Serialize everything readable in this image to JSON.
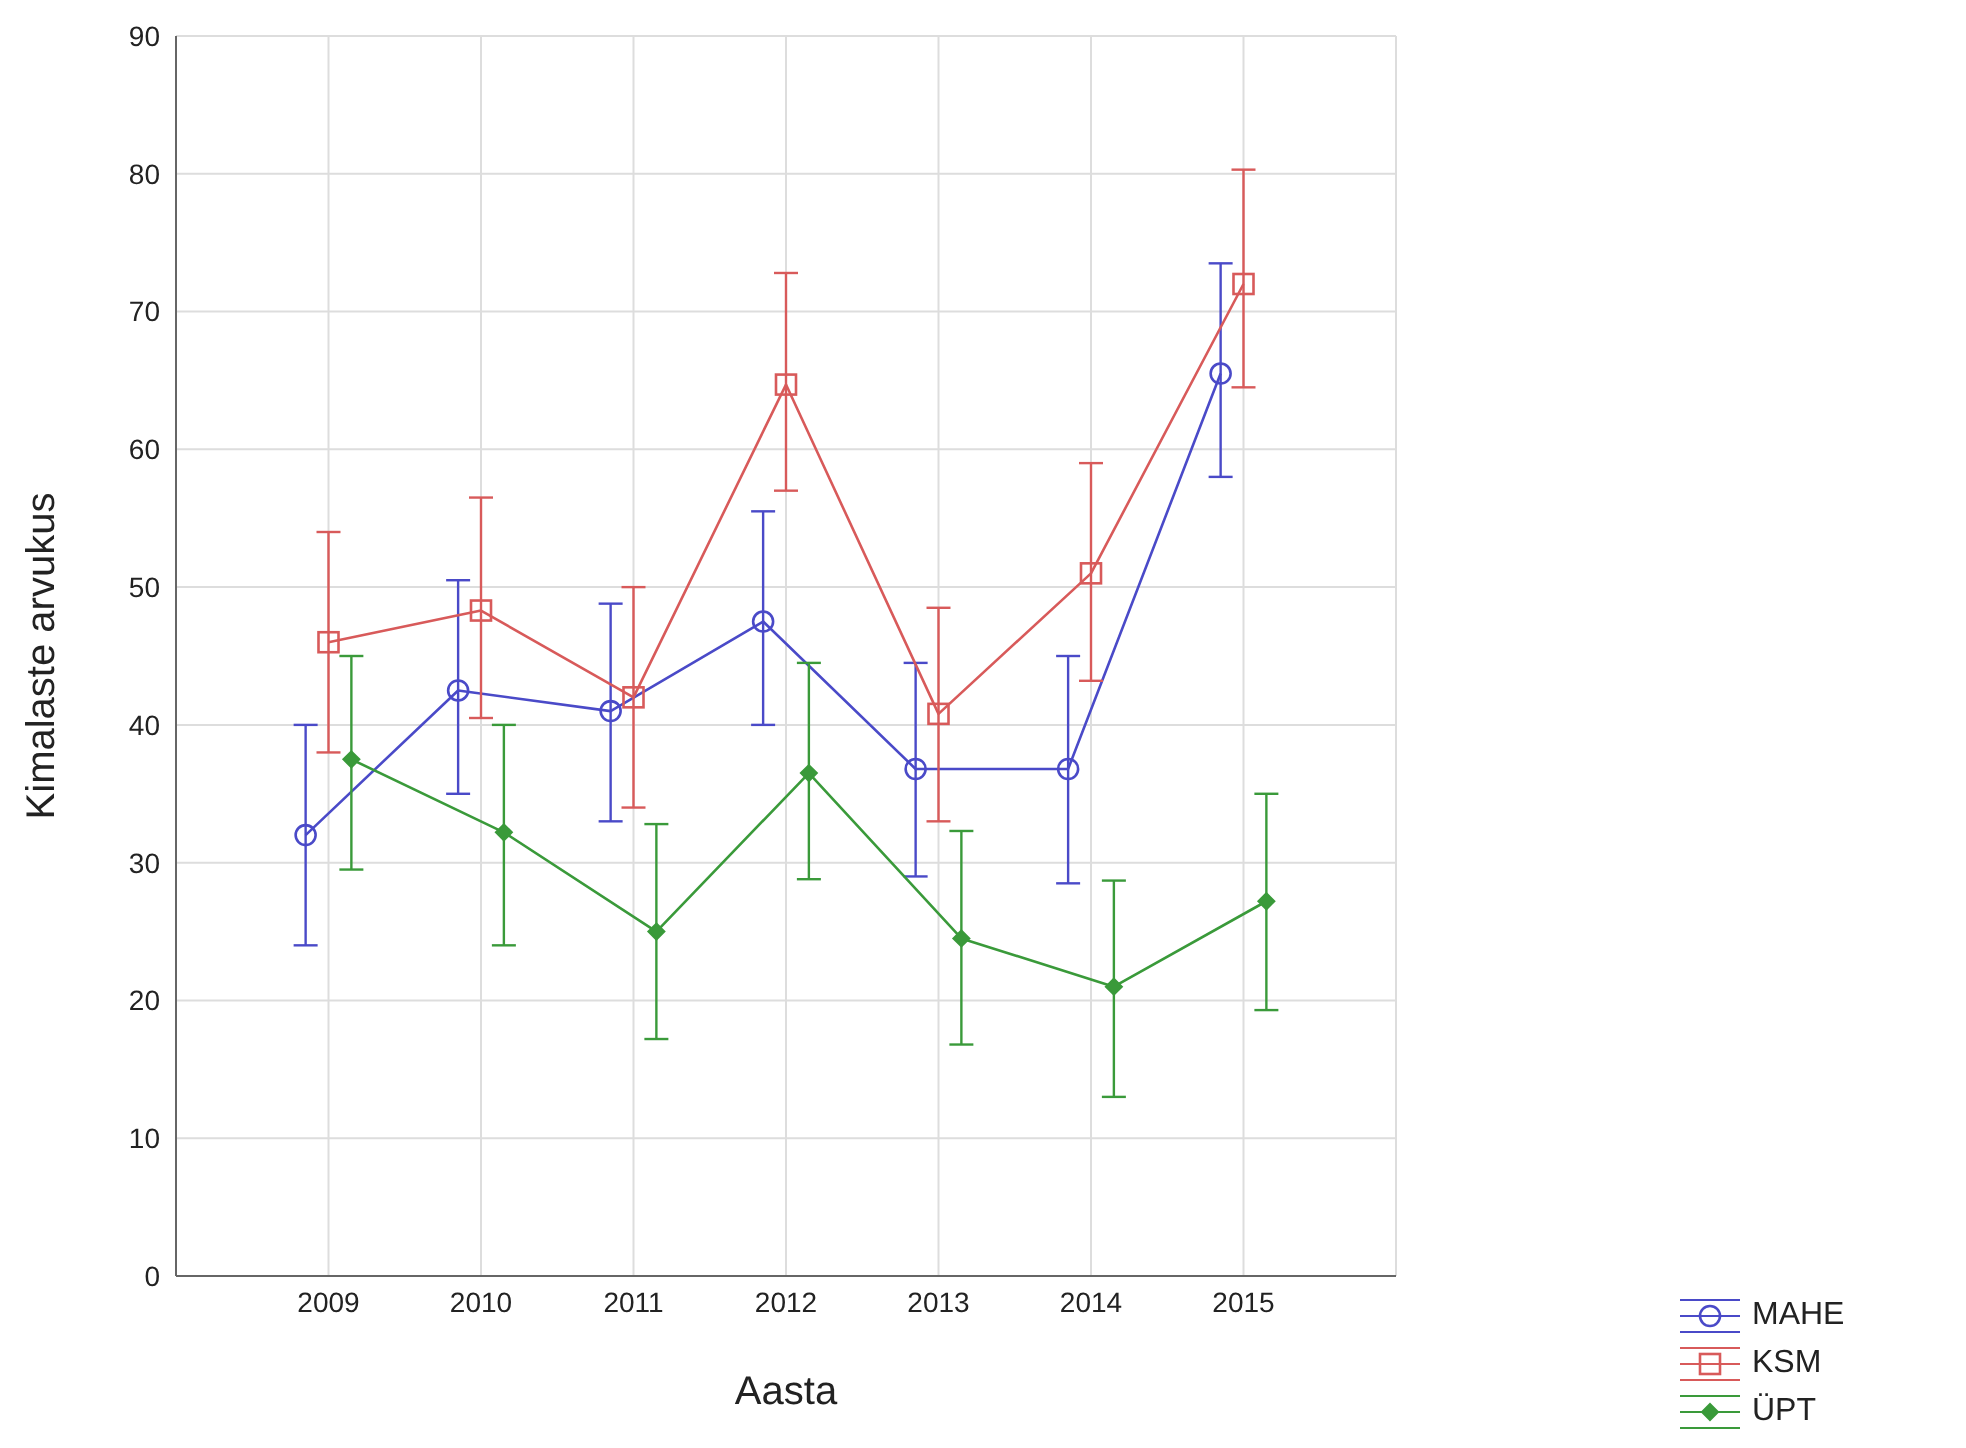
{
  "chart_data": {
    "type": "line",
    "xlabel": "Aasta",
    "ylabel": "Kimalaste arvukus",
    "xlim": [
      2008,
      2016
    ],
    "xticks": [
      2009,
      2010,
      2011,
      2012,
      2013,
      2014,
      2015
    ],
    "ylim": [
      0,
      90
    ],
    "yticks": [
      0,
      10,
      20,
      30,
      40,
      50,
      60,
      70,
      80,
      90
    ],
    "grid": true,
    "legend": "bottom right",
    "line_style": "solid",
    "series": [
      {
        "name": "MAHE",
        "color": "#4a4ac8",
        "marker": "circle",
        "x": [
          2008.85,
          2009.85,
          2010.85,
          2011.85,
          2012.85,
          2013.85,
          2014.85
        ],
        "values": [
          32,
          42.5,
          41,
          47.5,
          36.8,
          36.8,
          65.5
        ],
        "errors": [
          [
            24,
            40
          ],
          [
            35,
            50.5
          ],
          [
            33,
            48.8
          ],
          [
            40,
            55.5
          ],
          [
            29,
            44.5
          ],
          [
            28.5,
            45
          ],
          [
            58,
            73.5
          ]
        ]
      },
      {
        "name": "KSM",
        "color": "#d85a5a",
        "marker": "square",
        "x": [
          2009,
          2010,
          2011,
          2012,
          2013,
          2014,
          2015
        ],
        "values": [
          46,
          48.3,
          42,
          64.7,
          40.8,
          51,
          72
        ],
        "errors": [
          [
            38,
            54
          ],
          [
            40.5,
            56.5
          ],
          [
            34,
            50
          ],
          [
            57,
            72.8
          ],
          [
            33,
            48.5
          ],
          [
            43.2,
            59
          ],
          [
            64.5,
            80.3
          ]
        ]
      },
      {
        "name": "ÜPT",
        "color": "#3a9a3a",
        "marker": "diamond",
        "x": [
          2009.15,
          2010.15,
          2011.15,
          2012.15,
          2013.15,
          2014.15,
          2015.15
        ],
        "values": [
          37.5,
          32.2,
          25,
          36.5,
          24.5,
          21,
          27.2
        ],
        "errors": [
          [
            29.5,
            45
          ],
          [
            24,
            40
          ],
          [
            17.2,
            32.8
          ],
          [
            28.8,
            44.5
          ],
          [
            16.8,
            32.3
          ],
          [
            13,
            28.7
          ],
          [
            19.3,
            35
          ]
        ]
      }
    ]
  }
}
